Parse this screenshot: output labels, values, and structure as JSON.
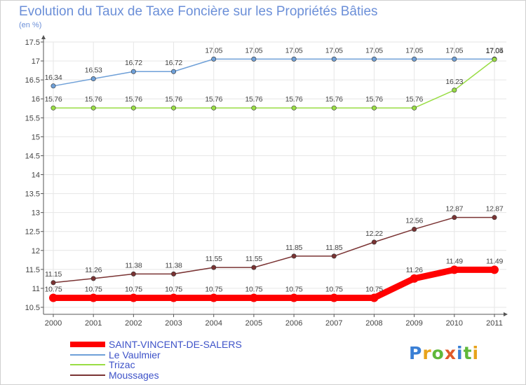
{
  "title": "Evolution du Taux de Taxe Foncière sur les Propriétés Bâties",
  "unit_label": "(en %)",
  "logo_text": "Proxiti",
  "chart_data": {
    "type": "line",
    "title": "Evolution du Taux de Taxe Foncière sur les Propriétés Bâties",
    "ylabel": "(en %)",
    "xlabel": "",
    "x": [
      2000,
      2001,
      2002,
      2003,
      2004,
      2005,
      2006,
      2007,
      2008,
      2009,
      2010,
      2011
    ],
    "ylim": [
      10.5,
      17.5
    ],
    "yticks": [
      10.5,
      11,
      11.5,
      12,
      12.5,
      13,
      13.5,
      14,
      14.5,
      15,
      15.5,
      16,
      16.5,
      17,
      17.5
    ],
    "series": [
      {
        "name": "SAINT-VINCENT-DE-SALERS",
        "color": "#ff0000",
        "values": [
          10.75,
          10.75,
          10.75,
          10.75,
          10.75,
          10.75,
          10.75,
          10.75,
          10.75,
          11.26,
          11.49,
          11.49
        ],
        "labels": [
          "10.75",
          "10.75",
          "10.75",
          "10.75",
          "10.75",
          "10.75",
          "10.75",
          "10.75",
          "10.75",
          "11.26",
          "11.49",
          "11.49"
        ]
      },
      {
        "name": "Le Vaulmier",
        "color": "#6fa0d8",
        "values": [
          16.34,
          16.53,
          16.72,
          16.72,
          17.05,
          17.05,
          17.05,
          17.05,
          17.05,
          17.05,
          17.05,
          17.05
        ],
        "labels": [
          "16.34",
          "16.53",
          "16.72",
          "16.72",
          "17.05",
          "17.05",
          "17.05",
          "17.05",
          "17.05",
          "17.05",
          "17.05",
          "17.05"
        ]
      },
      {
        "name": "Trizac",
        "color": "#99dd44",
        "values": [
          15.76,
          15.76,
          15.76,
          15.76,
          15.76,
          15.76,
          15.76,
          15.76,
          15.76,
          15.76,
          16.23,
          17.04
        ],
        "labels": [
          "15.76",
          "15.76",
          "15.76",
          "15.76",
          "15.76",
          "15.76",
          "15.76",
          "15.76",
          "15.76",
          "15.76",
          "16.23",
          "17.04"
        ]
      },
      {
        "name": "Moussages",
        "color": "#7a3333",
        "values": [
          11.15,
          11.26,
          11.38,
          11.38,
          11.55,
          11.55,
          11.85,
          11.85,
          12.22,
          12.56,
          12.87,
          12.87
        ],
        "labels": [
          "11.15",
          "11.26",
          "11.38",
          "11.38",
          "11.55",
          "11.55",
          "11.85",
          "11.85",
          "12.22",
          "12.56",
          "12.87",
          "12.87"
        ]
      }
    ],
    "legend_position": "bottom-left"
  }
}
